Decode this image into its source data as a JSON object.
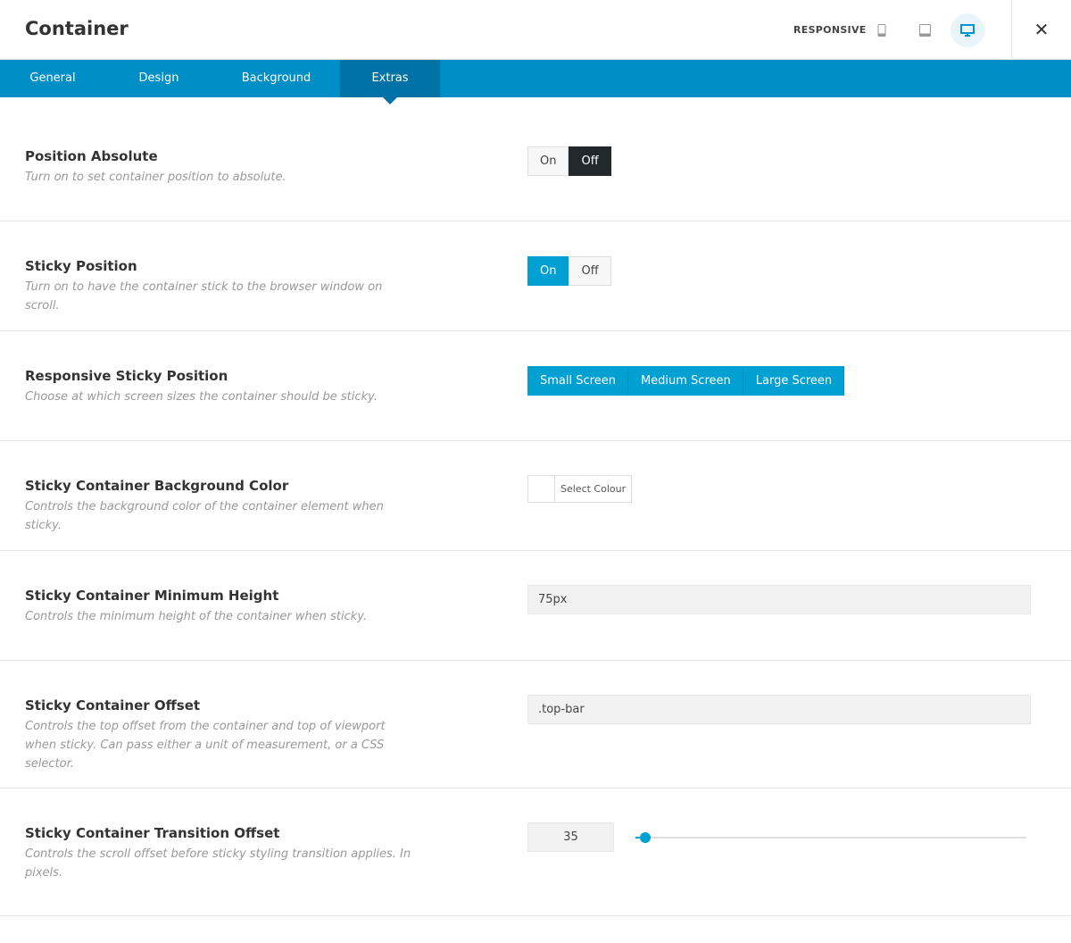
{
  "header": {
    "title": "Container",
    "responsive_label": "RESPONSIVE",
    "devices": [
      {
        "icon": "mobile-icon",
        "active": false
      },
      {
        "icon": "tablet-icon",
        "active": false
      },
      {
        "icon": "desktop-icon",
        "active": true
      }
    ],
    "close_icon": "close-icon"
  },
  "tabs": [
    {
      "label": "General"
    },
    {
      "label": "Design"
    },
    {
      "label": "Background"
    },
    {
      "label": "Extras",
      "active": true
    }
  ],
  "colors": {
    "accent": "#00a0d2",
    "tabbar": "#008ec6",
    "tab_active": "#0072a5",
    "dark": "#23282d"
  },
  "settings": [
    {
      "label": "Position Absolute",
      "description": "Turn on to set container position to absolute.",
      "options": [
        "On",
        "Off"
      ],
      "selected": "Off"
    },
    {
      "label": "Sticky Position",
      "description": "Turn on to have the container stick to the browser window on scroll.",
      "options": [
        "On",
        "Off"
      ],
      "selected": "On"
    },
    {
      "label": "Responsive Sticky Position",
      "description": "Choose at which screen sizes the container should be sticky.",
      "options": [
        "Small Screen",
        "Medium Screen",
        "Large Screen"
      ],
      "selected": [
        "Small Screen",
        "Medium Screen",
        "Large Screen"
      ]
    },
    {
      "label": "Sticky Container Background Color",
      "description": "Controls the background color of the container element when sticky.",
      "button": "Select Colour"
    },
    {
      "label": "Sticky Container Minimum Height",
      "description": "Controls the minimum height of the container when sticky.",
      "value": "75px"
    },
    {
      "label": "Sticky Container Offset",
      "description": "Controls the top offset from the container and top of viewport when sticky. Can pass either a unit of measurement, or a CSS selector.",
      "value": ".top-bar"
    },
    {
      "label": "Sticky Container Transition Offset",
      "description": "Controls the scroll offset before sticky styling transition applies. In pixels.",
      "value": "35",
      "slider_level_percent": 2.5
    }
  ]
}
